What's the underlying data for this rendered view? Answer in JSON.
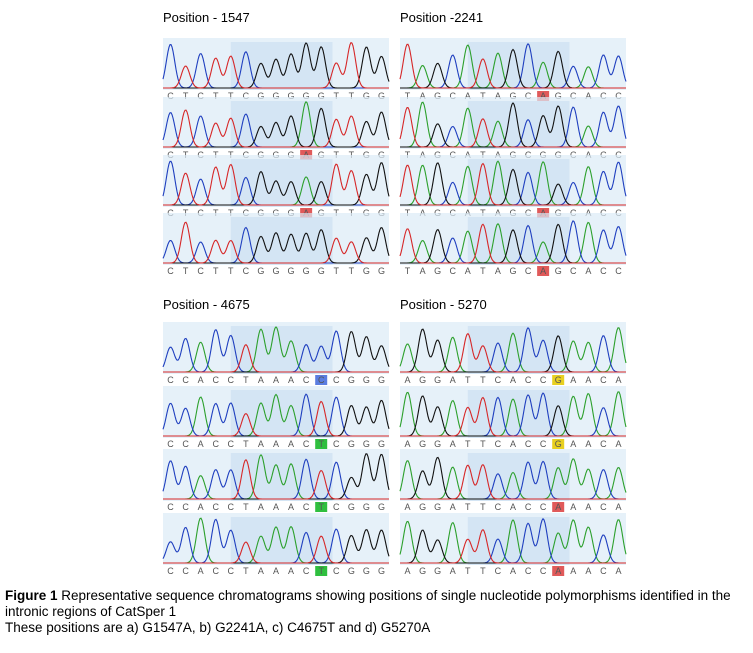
{
  "figure": {
    "panels": [
      {
        "title": "Position - 1547",
        "rows": [
          {
            "bases": [
              "C",
              "T",
              "C",
              "T",
              "T",
              "C",
              "G",
              "G",
              "G",
              "G",
              "G",
              "T",
              "T",
              "G",
              "G"
            ]
          },
          {
            "bases": [
              "C",
              "T",
              "C",
              "T",
              "T",
              "C",
              "G",
              "G",
              "G",
              "A",
              "G",
              "T",
              "T",
              "G",
              "G"
            ],
            "highlight": 9
          },
          {
            "bases": [
              "C",
              "T",
              "C",
              "T",
              "T",
              "C",
              "G",
              "G",
              "G",
              "A",
              "G",
              "T",
              "T",
              "G",
              "G"
            ],
            "highlight": 9
          },
          {
            "bases": [
              "C",
              "T",
              "C",
              "T",
              "T",
              "C",
              "G",
              "G",
              "G",
              "G",
              "G",
              "T",
              "T",
              "G",
              "G"
            ]
          }
        ]
      },
      {
        "title": "Position -2241",
        "rows": [
          {
            "bases": [
              "T",
              "A",
              "G",
              "C",
              "A",
              "T",
              "A",
              "G",
              "C",
              "A",
              "G",
              "C",
              "A",
              "C",
              "C"
            ],
            "highlight": 9
          },
          {
            "bases": [
              "T",
              "A",
              "G",
              "C",
              "A",
              "T",
              "A",
              "G",
              "C",
              "G",
              "G",
              "C",
              "A",
              "C",
              "C"
            ]
          },
          {
            "bases": [
              "T",
              "A",
              "G",
              "C",
              "A",
              "T",
              "A",
              "G",
              "C",
              "A",
              "G",
              "C",
              "A",
              "C",
              "C"
            ],
            "highlight": 9
          },
          {
            "bases": [
              "T",
              "A",
              "G",
              "C",
              "A",
              "T",
              "A",
              "G",
              "C",
              "A",
              "G",
              "C",
              "A",
              "C",
              "C"
            ],
            "highlight": 9
          }
        ]
      },
      {
        "title": "Position - 4675",
        "rows": [
          {
            "bases": [
              "C",
              "C",
              "A",
              "C",
              "C",
              "T",
              "A",
              "A",
              "A",
              "C",
              "C",
              "C",
              "G",
              "G",
              "G"
            ],
            "highlight": 10
          },
          {
            "bases": [
              "C",
              "C",
              "A",
              "C",
              "C",
              "T",
              "A",
              "A",
              "A",
              "C",
              "T",
              "C",
              "G",
              "G",
              "G"
            ],
            "highlight": 10
          },
          {
            "bases": [
              "C",
              "C",
              "A",
              "C",
              "C",
              "T",
              "A",
              "A",
              "A",
              "C",
              "T",
              "C",
              "G",
              "G",
              "G"
            ],
            "highlight": 10
          },
          {
            "bases": [
              "C",
              "C",
              "A",
              "C",
              "C",
              "T",
              "A",
              "A",
              "A",
              "C",
              "T",
              "C",
              "G",
              "G",
              "G"
            ],
            "highlight": 10
          }
        ]
      },
      {
        "title": "Position - 5270",
        "rows": [
          {
            "bases": [
              "A",
              "G",
              "G",
              "A",
              "T",
              "T",
              "C",
              "A",
              "C",
              "C",
              "G",
              "A",
              "A",
              "C",
              "A"
            ],
            "highlight": 10
          },
          {
            "bases": [
              "A",
              "G",
              "G",
              "A",
              "T",
              "T",
              "C",
              "A",
              "C",
              "C",
              "G",
              "A",
              "A",
              "C",
              "A"
            ],
            "highlight": 10
          },
          {
            "bases": [
              "A",
              "G",
              "G",
              "A",
              "T",
              "T",
              "C",
              "A",
              "C",
              "C",
              "A",
              "A",
              "A",
              "C",
              "A"
            ],
            "highlight": 10
          },
          {
            "bases": [
              "A",
              "G",
              "G",
              "A",
              "T",
              "T",
              "C",
              "A",
              "C",
              "C",
              "A",
              "A",
              "A",
              "C",
              "A"
            ],
            "highlight": 10
          }
        ]
      }
    ],
    "caption": {
      "label": "Figure 1",
      "text": "Representative sequence chromatograms showing positions of single nucleotide polymorphisms identified in the intronic regions of CatSper 1",
      "note": "These positions are a) G1547A, b) G2241A, c) C4675T and d) G5270A"
    }
  }
}
